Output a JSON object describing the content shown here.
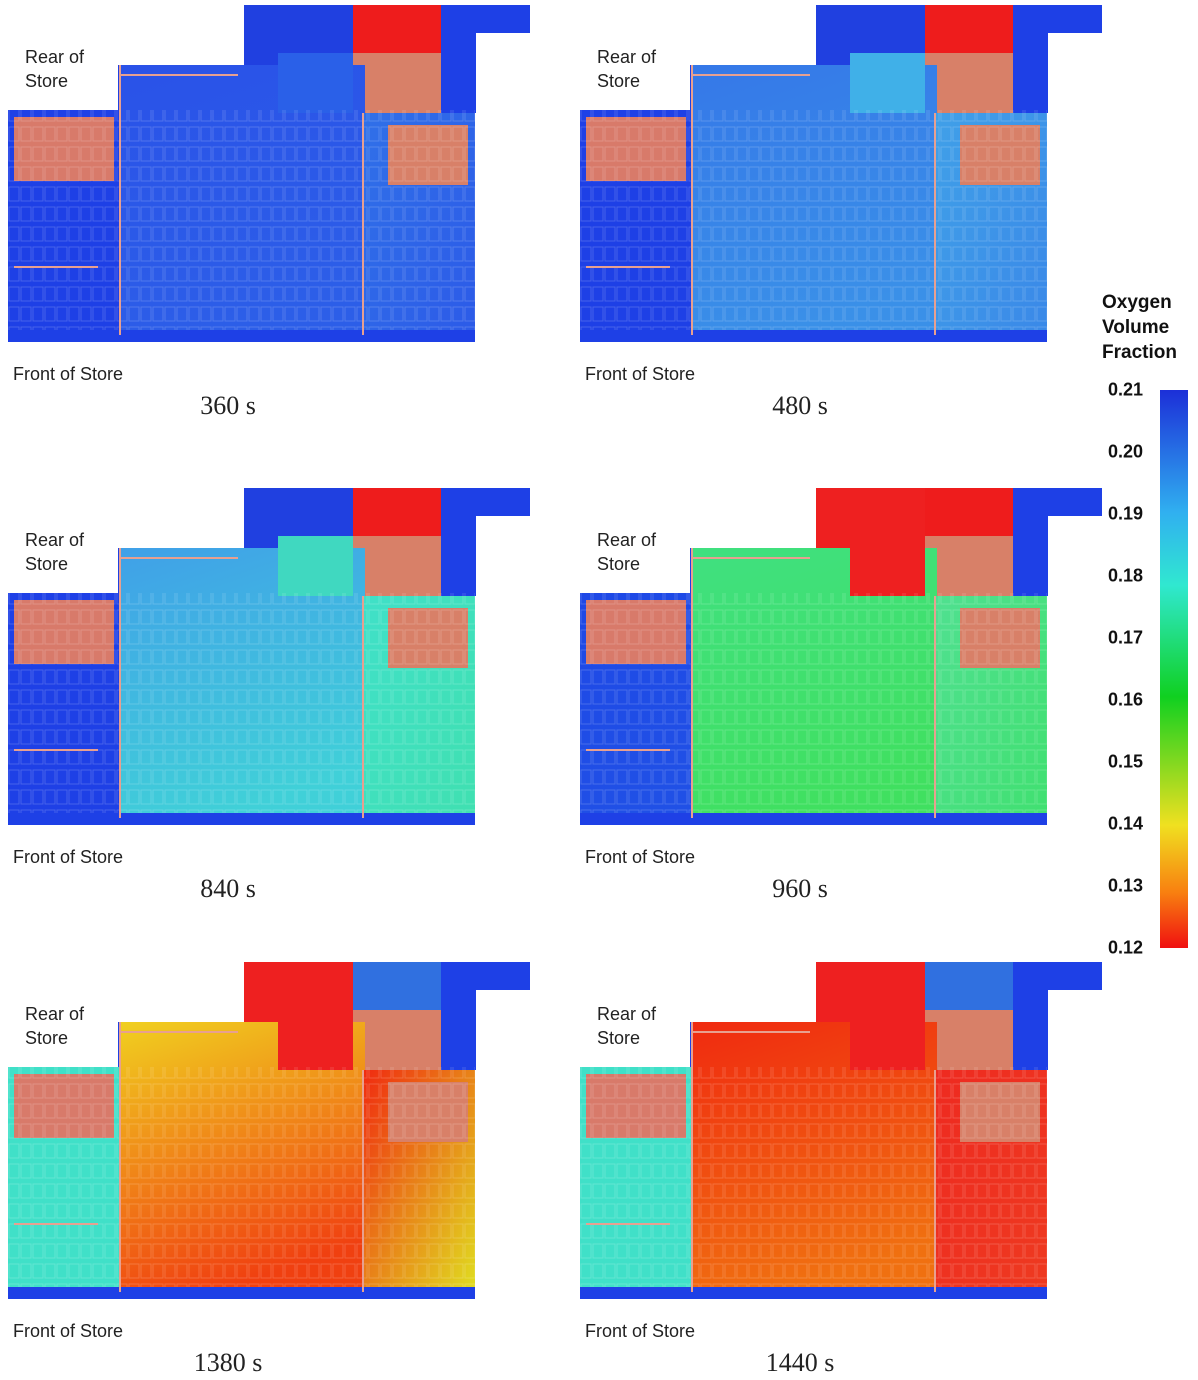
{
  "panels": [
    {
      "rear": "Rear of Store",
      "front": "Front of Store",
      "time": "360 s"
    },
    {
      "rear": "Rear of Store",
      "front": "Front of Store",
      "time": "480 s"
    },
    {
      "rear": "Rear of Store",
      "front": "Front of Store",
      "time": "840 s"
    },
    {
      "rear": "Rear of Store",
      "front": "Front of Store",
      "time": "960 s"
    },
    {
      "rear": "Rear of Store",
      "front": "Front of Store",
      "time": "1380 s"
    },
    {
      "rear": "Rear of Store",
      "front": "Front of Store",
      "time": "1440 s"
    }
  ],
  "colorbar": {
    "title": "Oxygen Volume Fraction",
    "ticks": [
      0.21,
      {
        "value": 0.2,
        "label": "0.20"
      },
      0.19,
      0.18,
      0.17,
      0.16,
      0.15,
      0.14,
      0.13,
      0.12
    ]
  }
}
